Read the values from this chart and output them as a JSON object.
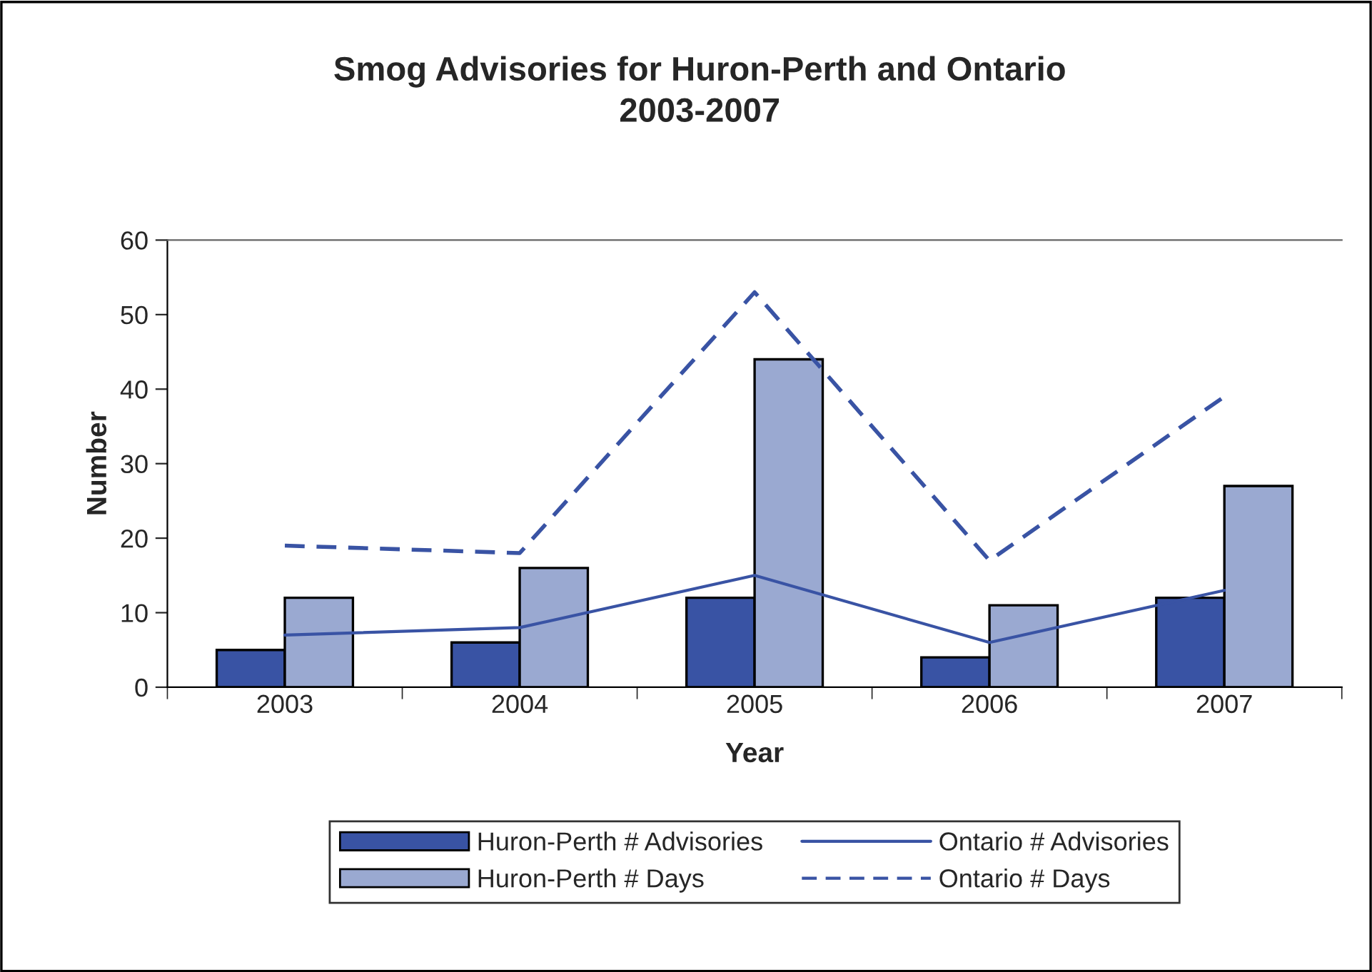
{
  "chart_data": {
    "type": "bar",
    "title": "Smog Advisories for Huron-Perth and Ontario\n2003-2007",
    "xlabel": "Year",
    "ylabel": "Number",
    "categories": [
      "2003",
      "2004",
      "2005",
      "2006",
      "2007"
    ],
    "series": [
      {
        "name": "Huron-Perth # Advisories",
        "color": "#3953a4",
        "values": [
          5,
          6,
          12,
          4,
          12
        ]
      },
      {
        "name": "Huron-Perth # Days",
        "color": "#9aa9d1",
        "values": [
          12,
          16,
          44,
          11,
          27
        ]
      },
      {
        "name": "Ontario # Advisories",
        "type": "line",
        "color": "#3953a4",
        "line_style": "solid",
        "values": [
          7,
          8,
          15,
          6,
          13
        ]
      },
      {
        "name": "Ontario # Days",
        "type": "line",
        "color": "#3953a4",
        "line_style": "dashed",
        "values": [
          19,
          18,
          53,
          17,
          39
        ]
      }
    ],
    "ylim": [
      0,
      60
    ],
    "yticks": [
      0,
      10,
      20,
      30,
      40,
      50,
      60
    ],
    "grid": false,
    "legend": "bottom",
    "marker": "none"
  }
}
